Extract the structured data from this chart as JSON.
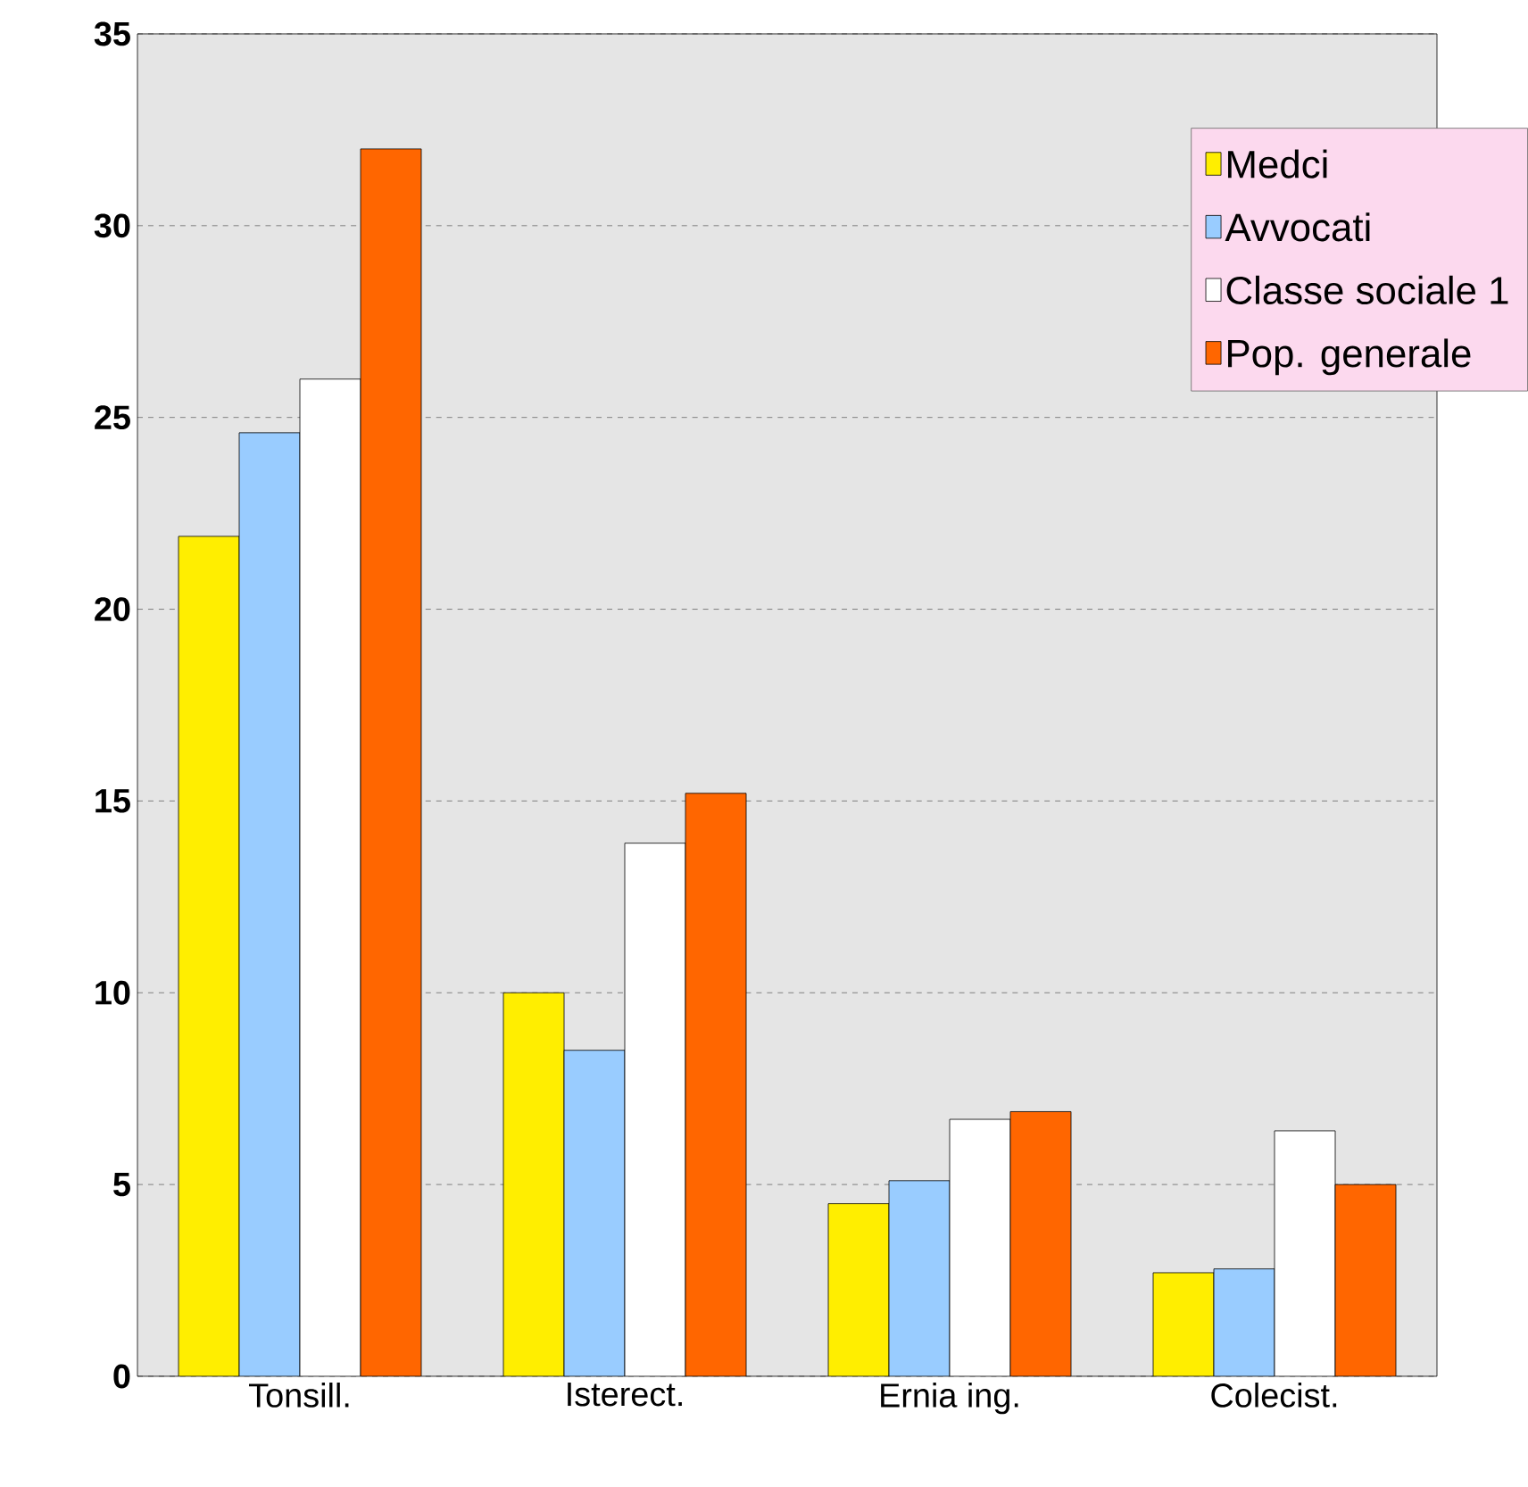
{
  "chart_data": {
    "type": "bar",
    "categories": [
      "Tonsill.",
      "Isterect.",
      "Ernia ing.",
      "Colecist."
    ],
    "series": [
      {
        "name": "Medci",
        "color": "#ffee00",
        "values": [
          21.9,
          10.0,
          4.5,
          2.7
        ]
      },
      {
        "name": "Avvocati",
        "color": "#99ccff",
        "values": [
          24.6,
          8.5,
          5.1,
          2.8
        ]
      },
      {
        "name": "Classe sociale 1",
        "color": "#ffffff",
        "values": [
          26.0,
          13.9,
          6.7,
          6.4
        ]
      },
      {
        "name": "Pop. generale",
        "color": "#ff6600",
        "values": [
          32.0,
          15.2,
          6.9,
          5.0
        ]
      }
    ],
    "ylim": [
      0,
      35
    ],
    "yticks": [
      0,
      5,
      10,
      15,
      20,
      25,
      30,
      35
    ],
    "grid": "y",
    "legend": "top right"
  }
}
